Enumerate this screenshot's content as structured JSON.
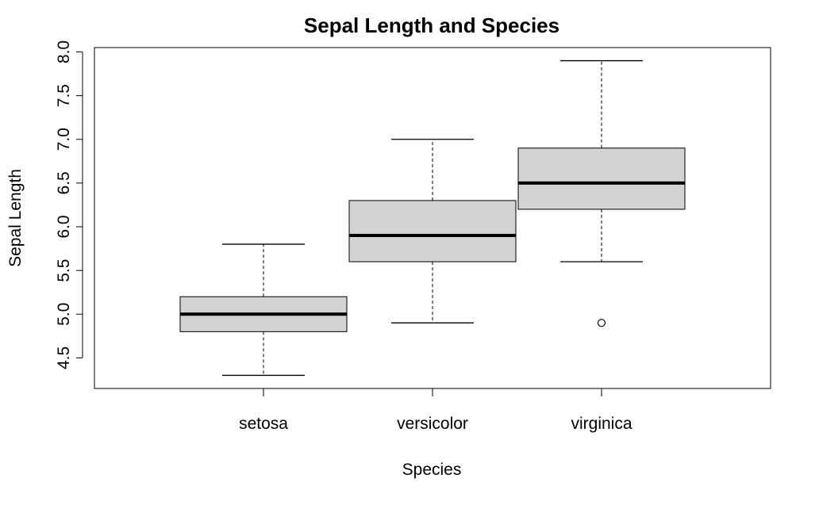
{
  "chart_data": {
    "type": "boxplot",
    "title": "Sepal Length and Species",
    "xlabel": "Species",
    "ylabel": "Sepal Length",
    "categories": [
      "setosa",
      "versicolor",
      "virginica"
    ],
    "boxes": [
      {
        "category": "setosa",
        "whisker_low": 4.3,
        "q1": 4.8,
        "median": 5.0,
        "q3": 5.2,
        "whisker_high": 5.8,
        "outliers": []
      },
      {
        "category": "versicolor",
        "whisker_low": 4.9,
        "q1": 5.6,
        "median": 5.9,
        "q3": 6.3,
        "whisker_high": 7.0,
        "outliers": []
      },
      {
        "category": "virginica",
        "whisker_low": 5.6,
        "q1": 6.2,
        "median": 6.5,
        "q3": 6.9,
        "whisker_high": 7.9,
        "outliers": [
          4.9
        ]
      }
    ],
    "yticks": [
      "4.5",
      "5.0",
      "5.5",
      "6.0",
      "6.5",
      "7.0",
      "7.5",
      "8.0"
    ],
    "ylim": [
      4.15,
      8.05
    ],
    "grid": false,
    "box_fill": "#d3d3d3",
    "line_color": "#000000"
  }
}
